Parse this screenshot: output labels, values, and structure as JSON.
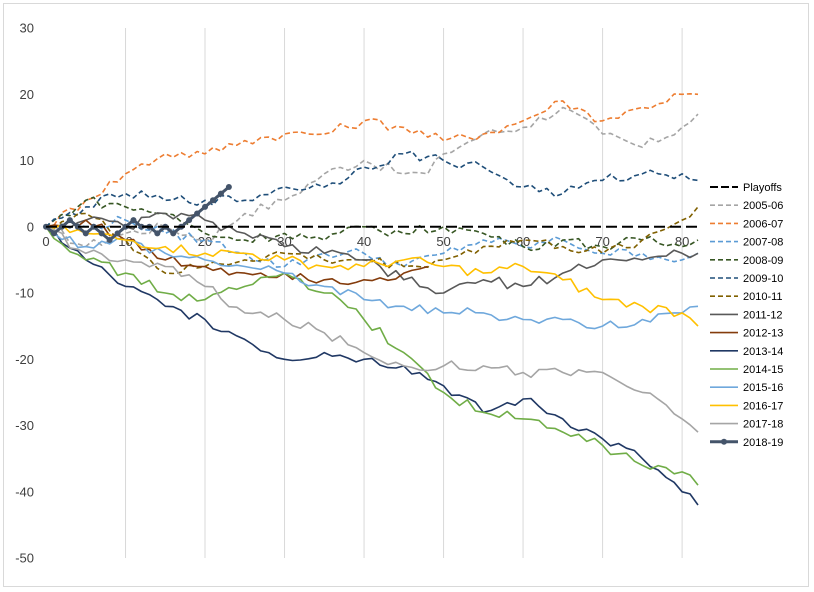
{
  "chart_data": {
    "type": "line",
    "title": "",
    "xlabel": "",
    "ylabel": "",
    "xlim": [
      0,
      82
    ],
    "ylim": [
      -50,
      30
    ],
    "x_ticks": [
      0,
      10,
      20,
      30,
      40,
      50,
      60,
      70,
      80
    ],
    "y_ticks": [
      30,
      20,
      10,
      0,
      -10,
      -20,
      -30,
      -40,
      -50
    ],
    "grid": {
      "vertical": true,
      "horizontal": false
    },
    "legend_placement": "right",
    "reference_line": {
      "name": "Playoffs",
      "y": 0,
      "color": "#000000",
      "style": "dashed"
    },
    "series": [
      {
        "name": "2005-06",
        "color": "#a5a5a5",
        "style": "dashed",
        "points": [
          [
            0,
            0
          ],
          [
            5,
            -3
          ],
          [
            10,
            -1
          ],
          [
            15,
            0
          ],
          [
            20,
            -2
          ],
          [
            25,
            2
          ],
          [
            30,
            4
          ],
          [
            35,
            8
          ],
          [
            40,
            10
          ],
          [
            45,
            8
          ],
          [
            48,
            8
          ],
          [
            50,
            11
          ],
          [
            55,
            14
          ],
          [
            60,
            15
          ],
          [
            65,
            18
          ],
          [
            70,
            14
          ],
          [
            75,
            12
          ],
          [
            80,
            15
          ],
          [
            82,
            17
          ]
        ]
      },
      {
        "name": "2006-07",
        "color": "#ed7d31",
        "style": "dashed",
        "points": [
          [
            0,
            0
          ],
          [
            5,
            4
          ],
          [
            10,
            8
          ],
          [
            15,
            11
          ],
          [
            20,
            11
          ],
          [
            25,
            13
          ],
          [
            30,
            14
          ],
          [
            35,
            14
          ],
          [
            40,
            16
          ],
          [
            45,
            15
          ],
          [
            50,
            13
          ],
          [
            55,
            14
          ],
          [
            60,
            16
          ],
          [
            65,
            19
          ],
          [
            70,
            16
          ],
          [
            75,
            18
          ],
          [
            80,
            20
          ],
          [
            82,
            20
          ]
        ]
      },
      {
        "name": "2007-08",
        "color": "#5b9bd5",
        "style": "dashed",
        "points": [
          [
            0,
            0
          ],
          [
            5,
            0
          ],
          [
            10,
            1
          ],
          [
            15,
            -1
          ],
          [
            20,
            -2
          ],
          [
            25,
            -4
          ],
          [
            30,
            -6
          ],
          [
            35,
            -4
          ],
          [
            40,
            -4
          ],
          [
            45,
            -6
          ],
          [
            50,
            -4
          ],
          [
            55,
            -2
          ],
          [
            60,
            -3
          ],
          [
            65,
            -2
          ],
          [
            70,
            -4
          ],
          [
            75,
            -4
          ],
          [
            80,
            -5
          ],
          [
            82,
            -4
          ]
        ]
      },
      {
        "name": "2008-09",
        "color": "#375623",
        "style": "dashed",
        "points": [
          [
            0,
            0
          ],
          [
            5,
            4
          ],
          [
            10,
            3
          ],
          [
            15,
            2
          ],
          [
            20,
            -1
          ],
          [
            25,
            -2
          ],
          [
            30,
            -1
          ],
          [
            35,
            -2
          ],
          [
            40,
            0
          ],
          [
            45,
            -1
          ],
          [
            50,
            0
          ],
          [
            55,
            -1
          ],
          [
            60,
            -3
          ],
          [
            65,
            -2
          ],
          [
            70,
            -3
          ],
          [
            75,
            -2
          ],
          [
            80,
            -3
          ],
          [
            82,
            -2
          ]
        ]
      },
      {
        "name": "2009-10",
        "color": "#1f4e79",
        "style": "dashed",
        "points": [
          [
            0,
            0
          ],
          [
            5,
            3
          ],
          [
            10,
            5
          ],
          [
            15,
            4
          ],
          [
            20,
            4
          ],
          [
            25,
            4
          ],
          [
            30,
            6
          ],
          [
            35,
            6
          ],
          [
            40,
            9
          ],
          [
            45,
            11
          ],
          [
            50,
            10
          ],
          [
            55,
            9
          ],
          [
            60,
            6
          ],
          [
            65,
            5
          ],
          [
            70,
            7
          ],
          [
            75,
            8
          ],
          [
            80,
            8
          ],
          [
            82,
            7
          ]
        ]
      },
      {
        "name": "2010-11",
        "color": "#806000",
        "style": "dashed",
        "points": [
          [
            0,
            0
          ],
          [
            5,
            2
          ],
          [
            10,
            -2
          ],
          [
            15,
            -7
          ],
          [
            20,
            -6
          ],
          [
            25,
            -5
          ],
          [
            30,
            -4
          ],
          [
            35,
            -5
          ],
          [
            40,
            -5
          ],
          [
            45,
            -6
          ],
          [
            50,
            -5
          ],
          [
            55,
            -3
          ],
          [
            60,
            -2
          ],
          [
            65,
            -3
          ],
          [
            70,
            -4
          ],
          [
            75,
            -2
          ],
          [
            80,
            1
          ],
          [
            82,
            3
          ]
        ]
      },
      {
        "name": "2011-12",
        "color": "#595959",
        "style": "solid",
        "points": [
          [
            0,
            0
          ],
          [
            5,
            1
          ],
          [
            10,
            0
          ],
          [
            15,
            2
          ],
          [
            20,
            1
          ],
          [
            25,
            -1
          ],
          [
            30,
            -3
          ],
          [
            35,
            -4
          ],
          [
            40,
            -5
          ],
          [
            45,
            -8
          ],
          [
            50,
            -10
          ],
          [
            55,
            -8
          ],
          [
            60,
            -9
          ],
          [
            65,
            -7
          ],
          [
            70,
            -5
          ],
          [
            75,
            -5
          ],
          [
            80,
            -4
          ],
          [
            82,
            -4
          ]
        ]
      },
      {
        "name": "2012-13",
        "color": "#843c0c",
        "style": "solid",
        "points": [
          [
            0,
            0
          ],
          [
            5,
            1
          ],
          [
            10,
            -2
          ],
          [
            15,
            -5
          ],
          [
            20,
            -6
          ],
          [
            25,
            -7
          ],
          [
            30,
            -7
          ],
          [
            35,
            -8
          ],
          [
            40,
            -8
          ],
          [
            45,
            -7
          ],
          [
            48,
            -6
          ]
        ]
      },
      {
        "name": "2013-14",
        "color": "#203864",
        "style": "solid",
        "points": [
          [
            0,
            0
          ],
          [
            5,
            -5
          ],
          [
            10,
            -9
          ],
          [
            15,
            -12
          ],
          [
            20,
            -14
          ],
          [
            25,
            -17
          ],
          [
            30,
            -20
          ],
          [
            35,
            -19
          ],
          [
            40,
            -20
          ],
          [
            45,
            -21
          ],
          [
            50,
            -24
          ],
          [
            55,
            -28
          ],
          [
            60,
            -26
          ],
          [
            65,
            -29
          ],
          [
            70,
            -32
          ],
          [
            75,
            -35
          ],
          [
            80,
            -40
          ],
          [
            82,
            -42
          ]
        ]
      },
      {
        "name": "2014-15",
        "color": "#70ad47",
        "style": "solid",
        "points": [
          [
            0,
            0
          ],
          [
            5,
            -5
          ],
          [
            10,
            -7
          ],
          [
            15,
            -10
          ],
          [
            20,
            -11
          ],
          [
            25,
            -9
          ],
          [
            30,
            -7
          ],
          [
            35,
            -10
          ],
          [
            40,
            -14
          ],
          [
            45,
            -19
          ],
          [
            50,
            -25
          ],
          [
            55,
            -28
          ],
          [
            60,
            -29
          ],
          [
            65,
            -31
          ],
          [
            70,
            -33
          ],
          [
            75,
            -36
          ],
          [
            80,
            -37
          ],
          [
            82,
            -39
          ]
        ]
      },
      {
        "name": "2015-16",
        "color": "#6fa8dc",
        "style": "solid",
        "points": [
          [
            0,
            0
          ],
          [
            5,
            -3
          ],
          [
            10,
            -2
          ],
          [
            15,
            -4
          ],
          [
            20,
            -5
          ],
          [
            25,
            -6
          ],
          [
            30,
            -7
          ],
          [
            35,
            -9
          ],
          [
            40,
            -11
          ],
          [
            45,
            -12
          ],
          [
            50,
            -13
          ],
          [
            55,
            -13
          ],
          [
            60,
            -14
          ],
          [
            65,
            -14
          ],
          [
            70,
            -15
          ],
          [
            75,
            -14
          ],
          [
            80,
            -13
          ],
          [
            82,
            -12
          ]
        ]
      },
      {
        "name": "2016-17",
        "color": "#ffc000",
        "style": "solid",
        "points": [
          [
            0,
            0
          ],
          [
            5,
            -1
          ],
          [
            10,
            -2
          ],
          [
            15,
            -3
          ],
          [
            20,
            -4
          ],
          [
            25,
            -4
          ],
          [
            30,
            -5
          ],
          [
            35,
            -6
          ],
          [
            40,
            -6
          ],
          [
            45,
            -5
          ],
          [
            50,
            -6
          ],
          [
            55,
            -7
          ],
          [
            60,
            -6
          ],
          [
            65,
            -8
          ],
          [
            70,
            -11
          ],
          [
            75,
            -12
          ],
          [
            80,
            -13
          ],
          [
            82,
            -15
          ]
        ]
      },
      {
        "name": "2017-18",
        "color": "#a5a5a5",
        "style": "solid",
        "points": [
          [
            0,
            0
          ],
          [
            5,
            -4
          ],
          [
            10,
            -5
          ],
          [
            15,
            -6
          ],
          [
            20,
            -9
          ],
          [
            25,
            -13
          ],
          [
            30,
            -14
          ],
          [
            35,
            -16
          ],
          [
            40,
            -19
          ],
          [
            45,
            -21
          ],
          [
            50,
            -21
          ],
          [
            55,
            -21
          ],
          [
            60,
            -22
          ],
          [
            65,
            -22
          ],
          [
            70,
            -22
          ],
          [
            75,
            -25
          ],
          [
            80,
            -29
          ],
          [
            82,
            -31
          ]
        ]
      },
      {
        "name": "2018-19",
        "color": "#44546a",
        "style": "solid-markers",
        "points": [
          [
            0,
            0
          ],
          [
            1,
            -1
          ],
          [
            2,
            0
          ],
          [
            3,
            1
          ],
          [
            4,
            0
          ],
          [
            5,
            -1
          ],
          [
            6,
            0
          ],
          [
            7,
            -1
          ],
          [
            8,
            -2
          ],
          [
            9,
            -1
          ],
          [
            10,
            0
          ],
          [
            11,
            1
          ],
          [
            12,
            0
          ],
          [
            13,
            0
          ],
          [
            14,
            -1
          ],
          [
            15,
            0
          ],
          [
            16,
            -1
          ],
          [
            17,
            0
          ],
          [
            18,
            1
          ],
          [
            19,
            2
          ],
          [
            20,
            3
          ],
          [
            21,
            4
          ],
          [
            22,
            5
          ],
          [
            23,
            6
          ]
        ]
      }
    ]
  }
}
